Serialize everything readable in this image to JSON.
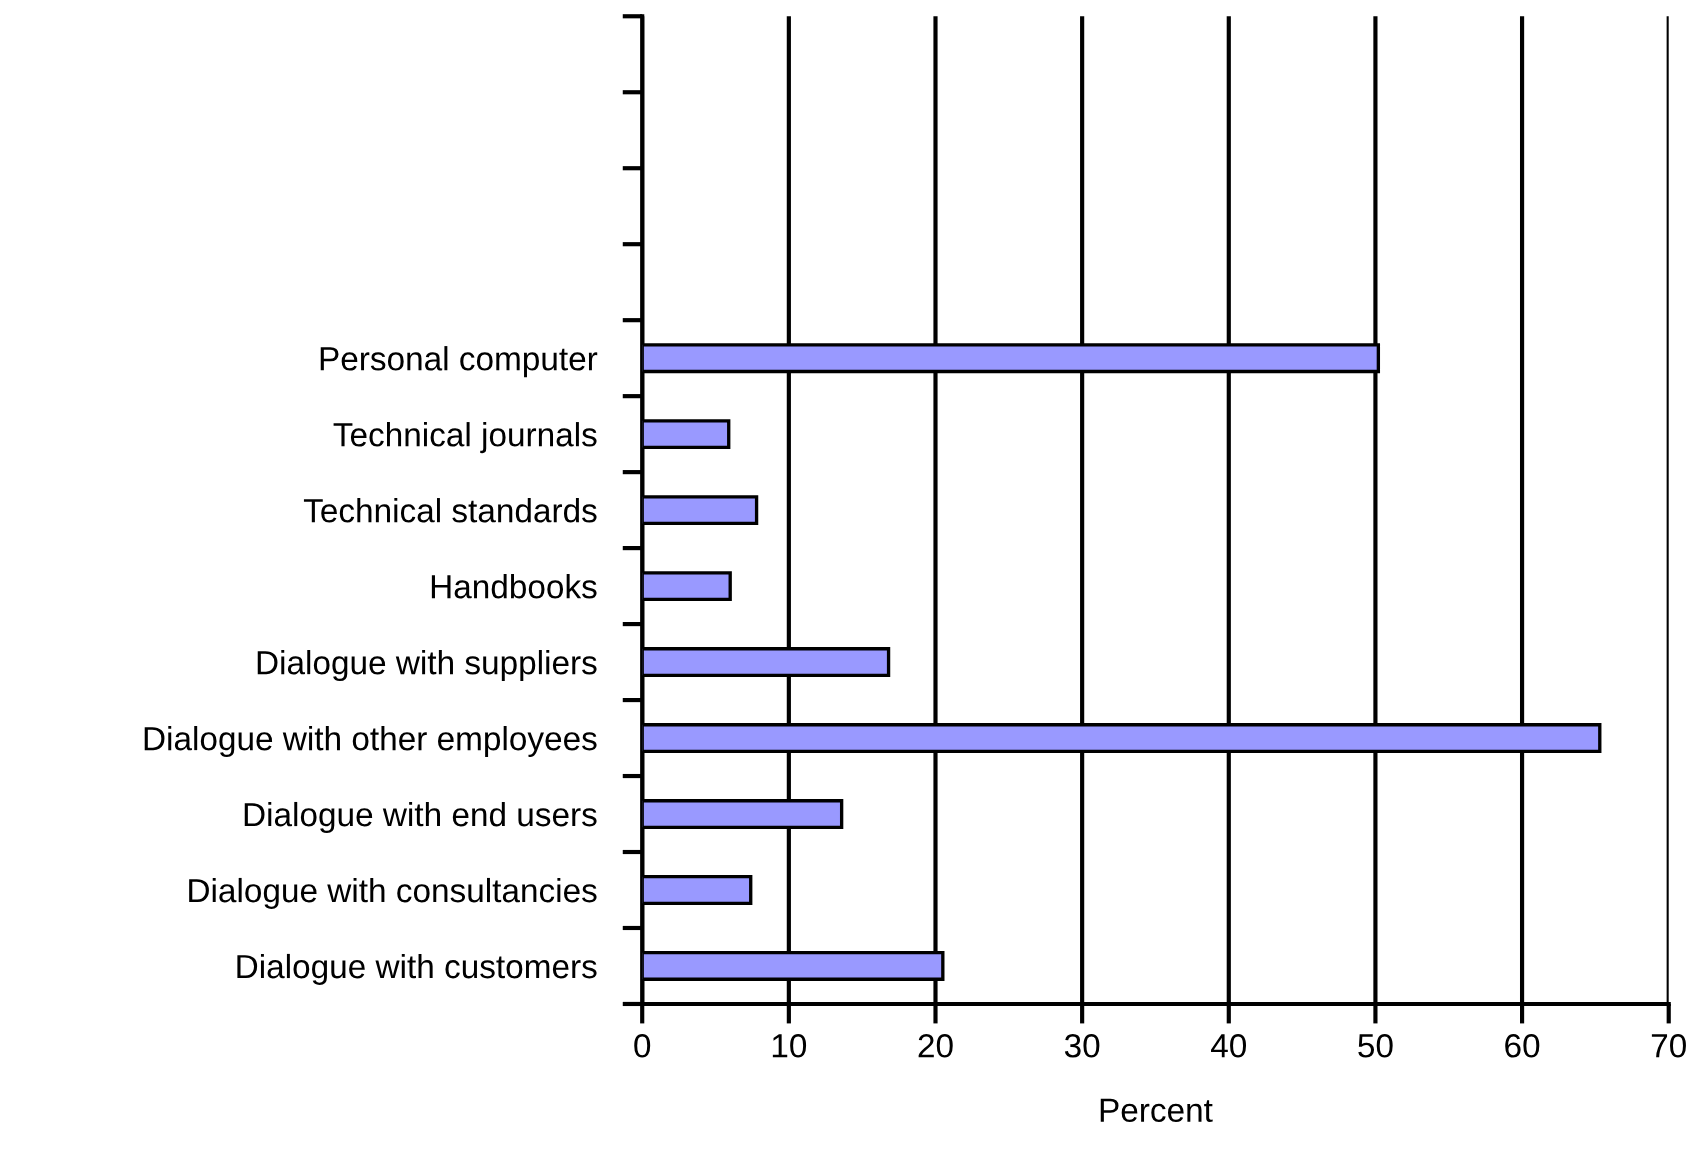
{
  "chart_data": {
    "type": "bar",
    "orientation": "horizontal",
    "xlabel": "Percent",
    "categories": [
      null,
      null,
      null,
      null,
      "Personal computer",
      "Technical journals",
      "Technical standards",
      "Handbooks",
      "Dialogue with suppliers",
      "Dialogue with other employees",
      "Dialogue with end users",
      "Dialogue with consultancies",
      "Dialogue with customers"
    ],
    "values": [
      null,
      null,
      null,
      null,
      50.2,
      5.9,
      7.8,
      6.0,
      16.8,
      65.3,
      13.6,
      7.4,
      20.5
    ],
    "color": "#9999ff",
    "xlim": [
      0,
      70
    ],
    "xticks": [
      0,
      10,
      20,
      30,
      40,
      50,
      60,
      70
    ],
    "grid": "x"
  }
}
